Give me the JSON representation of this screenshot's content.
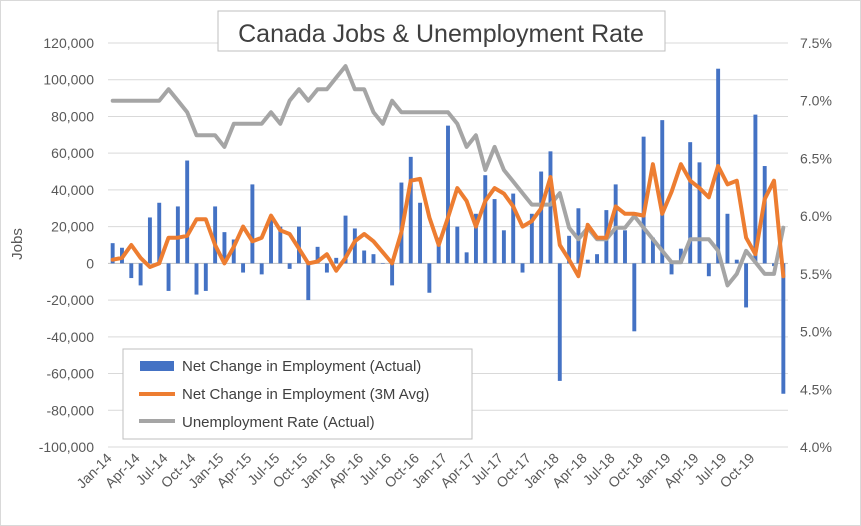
{
  "chart_data": {
    "type": "bar",
    "title": "Canada Jobs & Unemployment Rate",
    "ylabel": "Jobs",
    "y2label": "",
    "ylim": [
      -100000,
      120000
    ],
    "y2lim": [
      4.0,
      7.5
    ],
    "y_ticks": [
      "-100,000",
      "-80,000",
      "-60,000",
      "-40,000",
      "-20,000",
      "0",
      "20,000",
      "40,000",
      "60,000",
      "80,000",
      "100,000",
      "120,000"
    ],
    "y2_ticks": [
      "4.0%",
      "4.5%",
      "5.0%",
      "5.5%",
      "6.0%",
      "6.5%",
      "7.0%",
      "7.5%"
    ],
    "x_tick_labels": [
      "Jan-14",
      "Apr-14",
      "Jul-14",
      "Oct-14",
      "Jan-15",
      "Apr-15",
      "Jul-15",
      "Oct-15",
      "Jan-16",
      "Apr-16",
      "Jul-16",
      "Oct-16",
      "Jan-17",
      "Apr-17",
      "Jul-17",
      "Oct-17",
      "Jan-18",
      "Apr-18",
      "Jul-18",
      "Oct-18",
      "Jan-19",
      "Apr-19",
      "Jul-19",
      "Oct-19"
    ],
    "grid": true,
    "legend_position": "bottom-left",
    "colors": {
      "bars": "#4472C4",
      "avg": "#ED7D31",
      "rate": "#A5A5A5"
    },
    "series": [
      {
        "name": "Net Change in Employment (Actual)",
        "type": "bar",
        "axis": "left",
        "values": [
          11000,
          8500,
          -8000,
          -12000,
          25000,
          33000,
          -15000,
          31000,
          56000,
          -17000,
          -15000,
          31000,
          17000,
          13000,
          -5000,
          43000,
          -6000,
          25000,
          20000,
          -3000,
          20000,
          -20000,
          9000,
          -5000,
          3000,
          26000,
          19000,
          7000,
          5000,
          0,
          -12000,
          44000,
          58000,
          33000,
          -16000,
          14000,
          75000,
          20000,
          6000,
          27000,
          48000,
          35000,
          18000,
          38000,
          -5000,
          27000,
          50000,
          61000,
          -64000,
          15000,
          30000,
          2000,
          5000,
          29000,
          43000,
          18000,
          -37000,
          69000,
          14000,
          78000,
          -6000,
          8000,
          66000,
          55000,
          -7000,
          106000,
          27000,
          2000,
          -24000,
          81000,
          53000,
          -1500,
          -71000
        ]
      },
      {
        "name": "Net Change in Employment (3M Avg)",
        "type": "line",
        "axis": "left",
        "values": [
          2000,
          3000,
          10000,
          3000,
          -2000,
          0,
          14000,
          14000,
          15000,
          24000,
          24000,
          10000,
          0,
          9000,
          20000,
          12000,
          14000,
          26000,
          18000,
          16000,
          8000,
          0,
          1000,
          5000,
          -4000,
          3000,
          12000,
          16000,
          12000,
          6000,
          0,
          17000,
          45000,
          46000,
          25000,
          10000,
          25000,
          41000,
          34000,
          20000,
          34000,
          41000,
          38000,
          31000,
          20000,
          23000,
          30000,
          47000,
          10000,
          2000,
          -7000,
          21000,
          14000,
          14000,
          31000,
          27000,
          27000,
          26000,
          54000,
          27000,
          39000,
          54000,
          45000,
          41000,
          36000,
          53000,
          43000,
          45000,
          14000,
          5000,
          35000,
          45000,
          -7000
        ]
      },
      {
        "name": "Unemployment Rate (Actual)",
        "type": "line",
        "axis": "right",
        "values": [
          7.0,
          7.0,
          7.0,
          7.0,
          7.0,
          7.0,
          7.1,
          7.0,
          6.9,
          6.7,
          6.7,
          6.7,
          6.6,
          6.8,
          6.8,
          6.8,
          6.8,
          6.9,
          6.8,
          7.0,
          7.1,
          7.0,
          7.1,
          7.1,
          7.2,
          7.3,
          7.1,
          7.1,
          6.9,
          6.8,
          7.0,
          6.9,
          6.9,
          6.9,
          6.9,
          6.9,
          6.9,
          6.8,
          6.6,
          6.7,
          6.4,
          6.6,
          6.4,
          6.3,
          6.2,
          6.1,
          6.1,
          6.1,
          6.2,
          5.9,
          5.8,
          5.9,
          5.8,
          5.8,
          5.9,
          5.9,
          6.0,
          5.9,
          5.8,
          5.7,
          5.6,
          5.6,
          5.8,
          5.8,
          5.8,
          5.7,
          5.4,
          5.5,
          5.7,
          5.6,
          5.5,
          5.5,
          5.9
        ]
      }
    ]
  }
}
